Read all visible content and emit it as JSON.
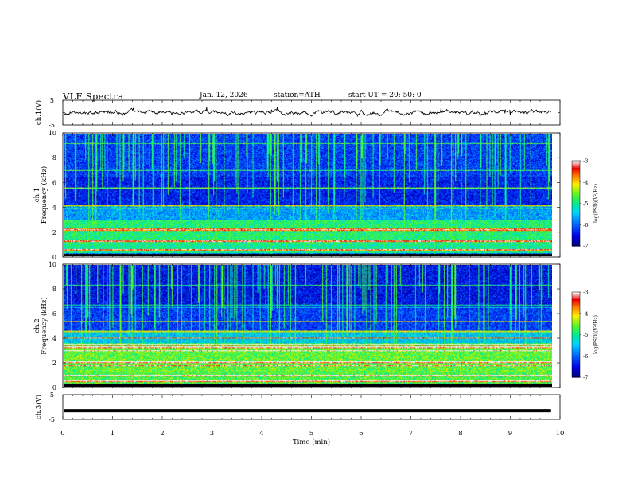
{
  "header": {
    "title": "VLF  Spectra",
    "date": "Jan.  12,  2026",
    "station": "station=ATH",
    "start": "start  UT  =   20: 50: 0"
  },
  "chart_data": [
    {
      "id": "ch1-waveform",
      "type": "line",
      "ylabel": "ch.1(V)",
      "ytick_labels": [
        "5",
        "-5"
      ],
      "ylim": [
        -5,
        5
      ],
      "xlim": [
        0,
        10
      ],
      "description_series": "waveform oscillating near 0 V between about -1.5 and 1.5 V"
    },
    {
      "id": "ch1-spectrogram",
      "type": "heatmap",
      "ylabel": "Frequency  (kHz)",
      "channel_label": "ch.1",
      "ylim": [
        0,
        10
      ],
      "ytick_labels": [
        "0",
        "2",
        "4",
        "6",
        "8",
        "10"
      ],
      "xlim": [
        0,
        10
      ],
      "colorbar": {
        "label": "log(PSD)(V²/Hz)",
        "range": [
          -7,
          -3
        ],
        "tick_labels": [
          "-3",
          "-4",
          "-5",
          "-6",
          "-7"
        ]
      }
    },
    {
      "id": "ch2-spectrogram",
      "type": "heatmap",
      "ylabel": "Frequency  (kHz)",
      "channel_label": "ch.2",
      "ylim": [
        0,
        10
      ],
      "ytick_labels": [
        "0",
        "2",
        "4",
        "6",
        "8",
        "10"
      ],
      "xlim": [
        0,
        10
      ],
      "colorbar": {
        "label": "log(PSD)(V²/Hz)",
        "range": [
          -7,
          -3
        ],
        "tick_labels": [
          "-3",
          "-4",
          "-5",
          "-6",
          "-7"
        ]
      }
    },
    {
      "id": "ch3-waveform",
      "type": "line",
      "ylabel": "ch.3(V)",
      "ytick_labels": [
        "5",
        "-5"
      ],
      "ylim": [
        -5,
        5
      ],
      "xlim": [
        0,
        10
      ],
      "description_series": "flat trace near -1.5 V"
    }
  ],
  "xaxis": {
    "label": "Time  (min)",
    "tick_labels": [
      "0",
      "1",
      "2",
      "3",
      "4",
      "5",
      "6",
      "7",
      "8",
      "9",
      "10"
    ],
    "range": [
      0,
      10
    ]
  }
}
